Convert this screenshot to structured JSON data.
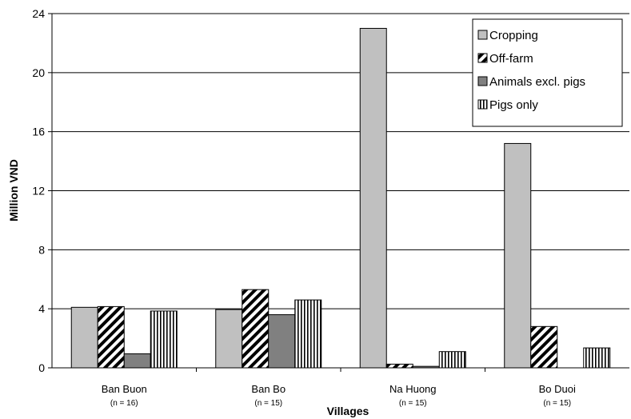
{
  "chart_data": {
    "type": "bar",
    "title": "",
    "xlabel": "Villages",
    "ylabel": "Million VND",
    "ylim": [
      0,
      24
    ],
    "yticks": [
      0,
      4,
      8,
      12,
      16,
      20,
      24
    ],
    "grid": true,
    "legend_position": "top-right",
    "categories": [
      "Ban Buon",
      "Ban Bo",
      "Na Huong",
      "Bo Duoi"
    ],
    "category_notes": [
      "(n = 16)",
      "(n = 15)",
      "(n = 15)",
      "(n = 15)"
    ],
    "series": [
      {
        "name": "Cropping",
        "values": [
          4.1,
          3.95,
          23.0,
          15.2
        ],
        "color": "#c0c0c0",
        "pattern": "solid"
      },
      {
        "name": "Off-farm",
        "values": [
          4.15,
          5.3,
          0.25,
          2.8
        ],
        "color": "#ffffff",
        "pattern": "diagonal"
      },
      {
        "name": "Animals excl. pigs",
        "values": [
          0.95,
          3.6,
          0.1,
          0.0
        ],
        "color": "#808080",
        "pattern": "solid"
      },
      {
        "name": "Pigs only",
        "values": [
          3.85,
          4.6,
          1.1,
          1.35
        ],
        "color": "#ffffff",
        "pattern": "vertical"
      }
    ]
  }
}
